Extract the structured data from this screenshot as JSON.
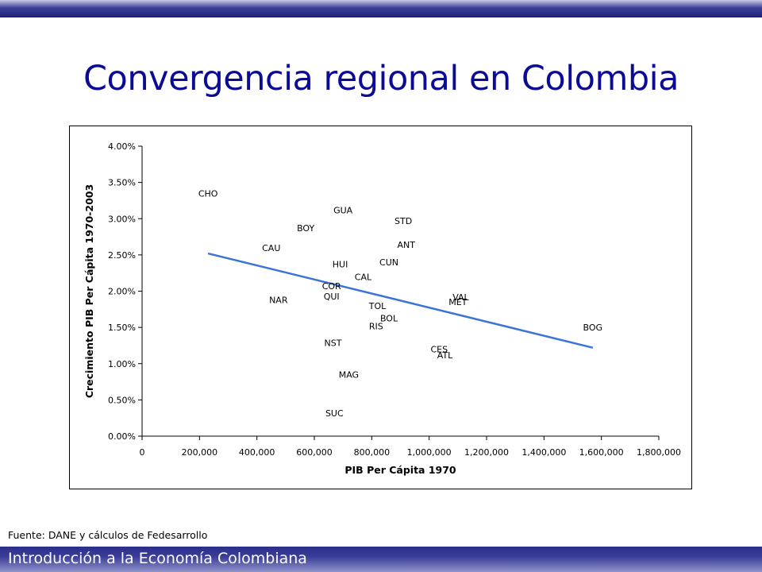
{
  "slide": {
    "title": "Convergencia regional en Colombia",
    "source": "Fuente: DANE y cálculos de Fedesarrollo",
    "footer": "Introducción a la Economía Colombiana",
    "colors": {
      "bar": "#1b1f7a",
      "title": "#0b0b96",
      "trendline": "#3b73d9"
    }
  },
  "chart_data": {
    "type": "scatter",
    "xlabel": "PIB Per Cápita 1970",
    "ylabel": "Crecimiento PIB Per Cápita 1970-2003",
    "xlim": [
      0,
      1800000
    ],
    "ylim": [
      0.0,
      0.04
    ],
    "x_ticks": [
      "0",
      "200,000",
      "400,000",
      "600,000",
      "800,000",
      "1,000,000",
      "1,200,000",
      "1,400,000",
      "1,600,000",
      "1,800,000"
    ],
    "y_ticks": [
      "0.00%",
      "0.50%",
      "1.00%",
      "1.50%",
      "2.00%",
      "2.50%",
      "3.00%",
      "3.50%",
      "4.00%"
    ],
    "grid": false,
    "points": [
      {
        "label": "CHO",
        "x": 230000,
        "y": 0.0335
      },
      {
        "label": "GUA",
        "x": 700000,
        "y": 0.0312
      },
      {
        "label": "BOY",
        "x": 570000,
        "y": 0.0287
      },
      {
        "label": "STD",
        "x": 910000,
        "y": 0.0297
      },
      {
        "label": "CAU",
        "x": 450000,
        "y": 0.026
      },
      {
        "label": "ANT",
        "x": 920000,
        "y": 0.0264
      },
      {
        "label": "HUI",
        "x": 690000,
        "y": 0.0237
      },
      {
        "label": "CUN",
        "x": 860000,
        "y": 0.024
      },
      {
        "label": "CAL",
        "x": 770000,
        "y": 0.022
      },
      {
        "label": "COR",
        "x": 660000,
        "y": 0.0207
      },
      {
        "label": "QUI",
        "x": 660000,
        "y": 0.0193
      },
      {
        "label": "NAR",
        "x": 475000,
        "y": 0.0188
      },
      {
        "label": "VAL",
        "x": 1110000,
        "y": 0.0192
      },
      {
        "label": "MET",
        "x": 1100000,
        "y": 0.0185
      },
      {
        "label": "TOL",
        "x": 820000,
        "y": 0.018
      },
      {
        "label": "BOL",
        "x": 860000,
        "y": 0.0163
      },
      {
        "label": "RIS",
        "x": 815000,
        "y": 0.0152
      },
      {
        "label": "BOG",
        "x": 1570000,
        "y": 0.015
      },
      {
        "label": "NST",
        "x": 665000,
        "y": 0.0129
      },
      {
        "label": "CES",
        "x": 1035000,
        "y": 0.012
      },
      {
        "label": "ATL",
        "x": 1055000,
        "y": 0.0112
      },
      {
        "label": "MAG",
        "x": 720000,
        "y": 0.0085
      },
      {
        "label": "SUC",
        "x": 670000,
        "y": 0.0032
      }
    ],
    "trendline": {
      "x": [
        230000,
        1570000
      ],
      "y": [
        0.0252,
        0.0122
      ]
    }
  }
}
